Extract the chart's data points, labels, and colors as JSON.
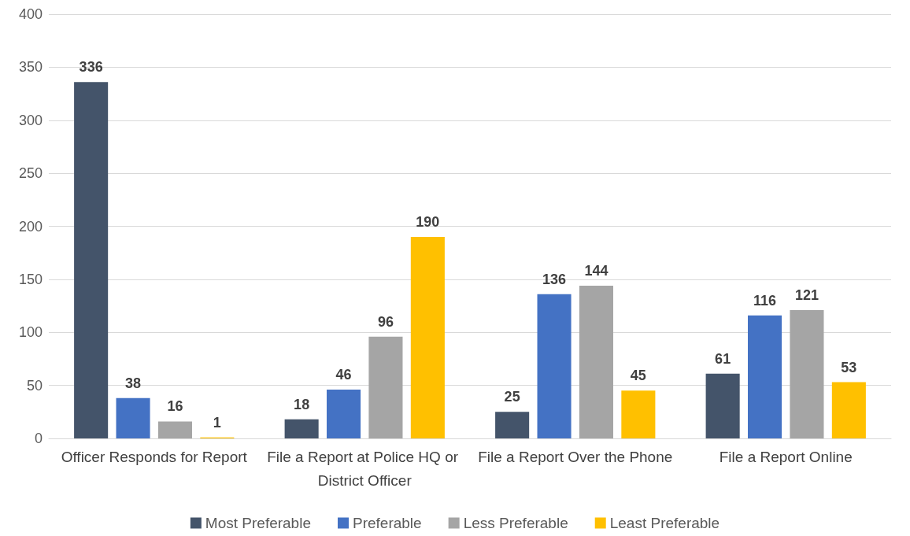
{
  "chart_data": {
    "type": "bar",
    "categories": [
      "Officer Responds for Report",
      "File a Report at Police HQ or District Officer",
      "File a Report Over the Phone",
      "File a Report Online"
    ],
    "series": [
      {
        "name": "Most Preferable",
        "color": "#44546a",
        "values": [
          336,
          18,
          25,
          61
        ]
      },
      {
        "name": "Preferable",
        "color": "#4472c4",
        "values": [
          38,
          46,
          136,
          116
        ]
      },
      {
        "name": "Less Preferable",
        "color": "#a5a5a5",
        "values": [
          16,
          96,
          144,
          121
        ]
      },
      {
        "name": "Least Preferable",
        "color": "#ffc000",
        "values": [
          1,
          190,
          45,
          53
        ]
      }
    ],
    "ylim": [
      0,
      400
    ],
    "yticks": [
      0,
      50,
      100,
      150,
      200,
      250,
      300,
      350,
      400
    ],
    "grid": "y",
    "legend": "bottom",
    "data_labels": true
  }
}
